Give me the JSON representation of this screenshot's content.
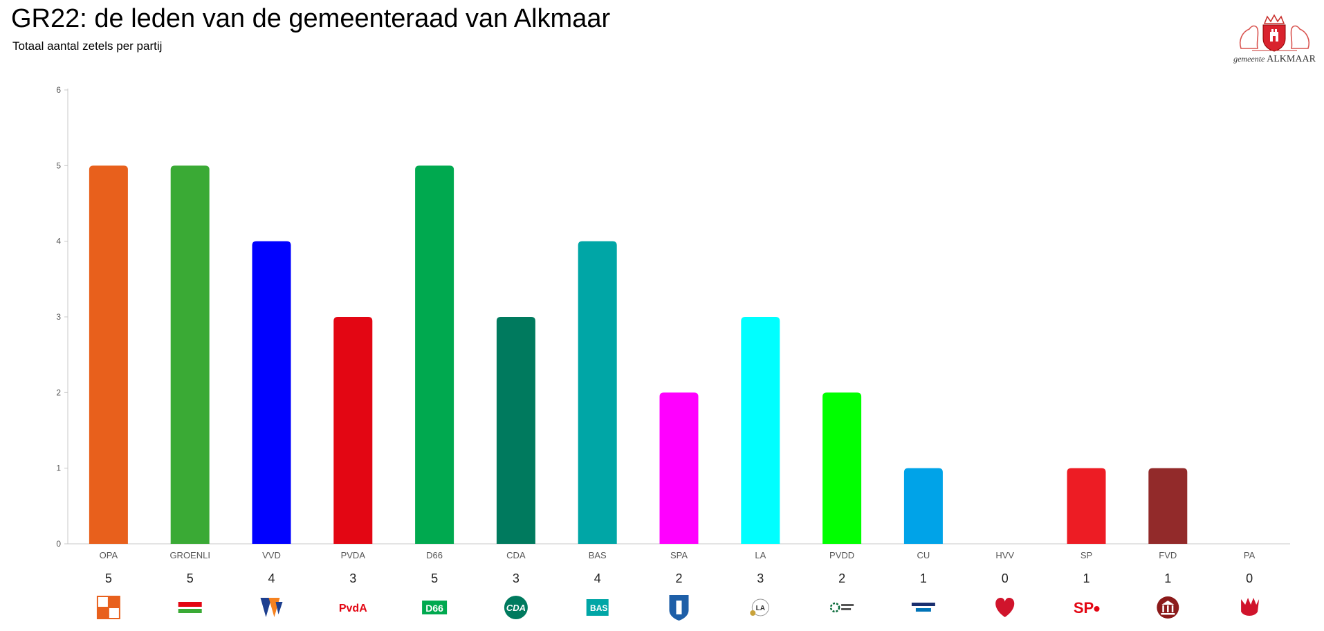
{
  "header": {
    "title": "GR22: de leden van de gemeenteraad van Alkmaar",
    "subtitle": "Totaal aantal zetels per partij"
  },
  "brand": {
    "prefix": "gemeente",
    "name": "ALKMAAR",
    "icon": "alkmaar-coat-of-arms-icon"
  },
  "chart_data": {
    "type": "bar",
    "title": "GR22: de leden van de gemeenteraad van Alkmaar",
    "subtitle": "Totaal aantal zetels per partij",
    "xlabel": "",
    "ylabel": "",
    "ylim": [
      0,
      6
    ],
    "yticks": [
      0,
      1,
      2,
      3,
      4,
      5,
      6
    ],
    "grid": false,
    "legend": "none",
    "categories": [
      "OPA",
      "GROENLI",
      "VVD",
      "PVDA",
      "D66",
      "CDA",
      "BAS",
      "SPA",
      "LA",
      "PVDD",
      "CU",
      "HVV",
      "SP",
      "FVD",
      "PA"
    ],
    "values": [
      5,
      5,
      4,
      3,
      5,
      3,
      4,
      2,
      3,
      2,
      1,
      0,
      1,
      1,
      0
    ],
    "colors": [
      "#e8601c",
      "#3aaa35",
      "#0000ff",
      "#e30613",
      "#00a94f",
      "#007a5e",
      "#00a6a6",
      "#ff00ff",
      "#00ffff",
      "#00ff00",
      "#00a3e8",
      "#cccccc",
      "#ed1c24",
      "#922a2a",
      "#cccccc"
    ],
    "logos": [
      {
        "icon": "opa-logo-icon",
        "text": "OPA",
        "color": "#e8601c"
      },
      {
        "icon": "groenlinks-logo-icon",
        "text": "GROEN LINKS",
        "color": "#e30613"
      },
      {
        "icon": "vvd-logo-icon",
        "text": "VVD",
        "color": "#f58220"
      },
      {
        "icon": "pvda-logo-icon",
        "text": "PvdA",
        "color": "#e30613"
      },
      {
        "icon": "d66-logo-icon",
        "text": "D66",
        "color": "#00a94f"
      },
      {
        "icon": "cda-logo-icon",
        "text": "CDA",
        "color": "#007a5e"
      },
      {
        "icon": "bas-logo-icon",
        "text": "BAS",
        "color": "#00a6a6"
      },
      {
        "icon": "spa-logo-icon",
        "text": "SPA",
        "color": "#1e5fa8"
      },
      {
        "icon": "la-logo-icon",
        "text": "LA",
        "color": "#7a6a3a"
      },
      {
        "icon": "pvdd-logo-icon",
        "text": "Partij voor de Dieren",
        "color": "#0a6b3a"
      },
      {
        "icon": "cu-logo-icon",
        "text": "Christen Unie",
        "color": "#0073b7"
      },
      {
        "icon": "hvv-logo-icon",
        "text": "HVV",
        "color": "#d0142c"
      },
      {
        "icon": "sp-logo-icon",
        "text": "SP",
        "color": "#e30613"
      },
      {
        "icon": "fvd-logo-icon",
        "text": "FVD",
        "color": "#8b1a1a"
      },
      {
        "icon": "pa-logo-icon",
        "text": "PA",
        "color": "#d0142c"
      }
    ]
  }
}
